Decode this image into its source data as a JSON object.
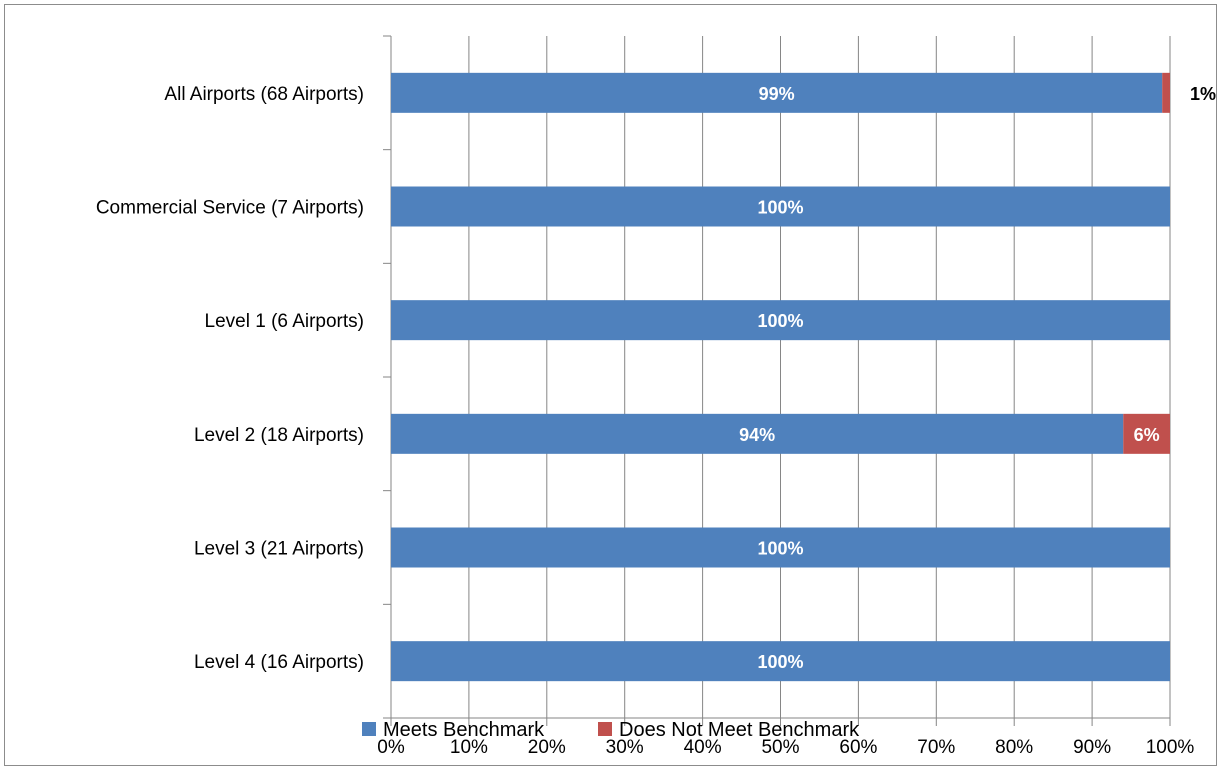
{
  "chart_data": {
    "type": "bar",
    "orientation": "horizontal",
    "stacked": true,
    "categories": [
      "All Airports (68 Airports)",
      "Commercial Service (7 Airports)",
      "Level 1 (6 Airports)",
      "Level 2 (18 Airports)",
      "Level 3 (21 Airports)",
      "Level 4 (16 Airports)"
    ],
    "series": [
      {
        "name": "Meets Benchmark",
        "color": "#4F81BD",
        "values": [
          99,
          100,
          100,
          94,
          100,
          100
        ]
      },
      {
        "name": "Does Not Meet Benchmark",
        "color": "#C0504D",
        "values": [
          1,
          0,
          0,
          6,
          0,
          0
        ]
      }
    ],
    "data_labels": {
      "Meets Benchmark": [
        "99%",
        "100%",
        "100%",
        "94%",
        "100%",
        "100%"
      ],
      "Does Not Meet Benchmark": [
        "1%",
        "",
        "",
        "6%",
        "",
        ""
      ]
    },
    "x_ticks": [
      "0%",
      "10%",
      "20%",
      "30%",
      "40%",
      "50%",
      "60%",
      "70%",
      "80%",
      "90%",
      "100%"
    ],
    "xlim": [
      0,
      100
    ],
    "title": "",
    "xlabel": "",
    "ylabel": "",
    "grid": true,
    "legend": "bottom"
  }
}
